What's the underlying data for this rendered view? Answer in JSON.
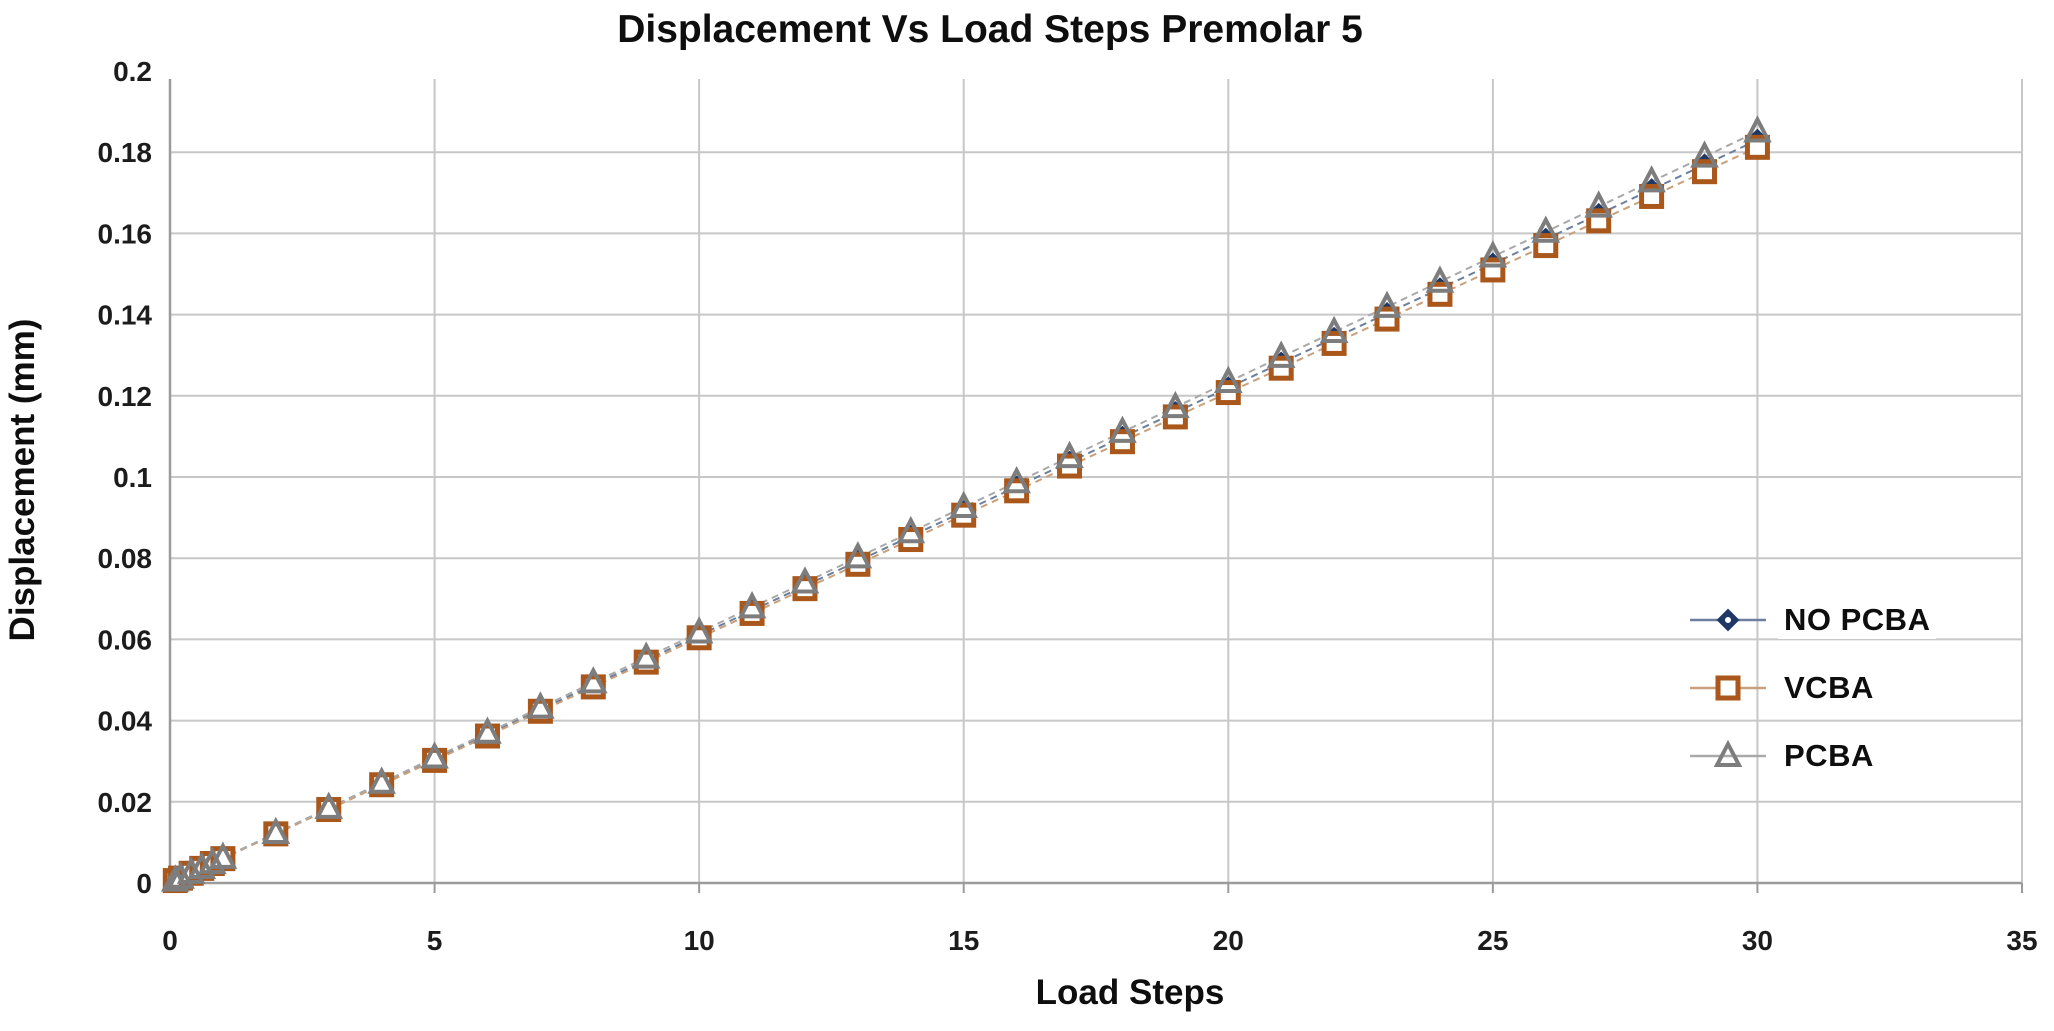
{
  "figure": {
    "background": "#ffffff"
  },
  "colors": {
    "grid": "#c7c7c7",
    "axis": "#9b9b9b",
    "text": "#1c1c1c"
  },
  "chart_data": {
    "type": "line",
    "title": "Displacement Vs Load Steps Premolar 5",
    "xlabel": "Load Steps",
    "ylabel": "Displacement (mm)",
    "xlim": [
      0,
      35
    ],
    "ylim": [
      0,
      0.2
    ],
    "x_ticks": [
      0,
      5,
      10,
      15,
      20,
      25,
      30,
      35
    ],
    "y_ticks": [
      0,
      0.02,
      0.04,
      0.06,
      0.08,
      0.1,
      0.12,
      0.14,
      0.16,
      0.18,
      0.2
    ],
    "grid": true,
    "legend_position": "right-middle",
    "x": [
      0.1,
      0.2,
      0.4,
      0.6,
      0.8,
      1,
      2,
      3,
      4,
      5,
      6,
      7,
      8,
      9,
      10,
      11,
      12,
      13,
      14,
      15,
      16,
      17,
      18,
      19,
      20,
      21,
      22,
      23,
      24,
      25,
      26,
      27,
      28,
      29,
      30
    ],
    "series": [
      {
        "name": "NO PCBA",
        "marker": "diamond",
        "color": "#1f3864",
        "line_color": "#6b7f9e",
        "values": [
          0.0006,
          0.0012,
          0.0024,
          0.0037,
          0.0049,
          0.0061,
          0.0122,
          0.0183,
          0.0244,
          0.0305,
          0.0366,
          0.0427,
          0.0488,
          0.0549,
          0.061,
          0.0671,
          0.0732,
          0.0793,
          0.0854,
          0.0915,
          0.0976,
          0.1037,
          0.1098,
          0.1159,
          0.122,
          0.1281,
          0.1342,
          0.1403,
          0.1464,
          0.1525,
          0.1586,
          0.1647,
          0.1708,
          0.1769,
          0.183
        ]
      },
      {
        "name": "VCBA",
        "marker": "square",
        "color": "#a9571b",
        "line_color": "#c9a07a",
        "values": [
          0.0006,
          0.0012,
          0.0024,
          0.0036,
          0.0048,
          0.006,
          0.0121,
          0.0181,
          0.0242,
          0.0302,
          0.0362,
          0.0423,
          0.0483,
          0.0544,
          0.0604,
          0.0664,
          0.0725,
          0.0785,
          0.0846,
          0.0906,
          0.0966,
          0.1027,
          0.1087,
          0.1148,
          0.1208,
          0.1268,
          0.1329,
          0.1389,
          0.145,
          0.151,
          0.157,
          0.1631,
          0.1691,
          0.1752,
          0.1812
        ]
      },
      {
        "name": "PCBA",
        "marker": "triangle",
        "color": "#7d7d7d",
        "line_color": "#a9a9a9",
        "values": [
          0.0006,
          0.0013,
          0.0025,
          0.0037,
          0.0049,
          0.0062,
          0.0123,
          0.0185,
          0.0247,
          0.0309,
          0.037,
          0.0432,
          0.0494,
          0.0555,
          0.0617,
          0.0679,
          0.074,
          0.0802,
          0.0864,
          0.0926,
          0.0987,
          0.1049,
          0.1111,
          0.1172,
          0.1234,
          0.1296,
          0.1357,
          0.1419,
          0.1481,
          0.1543,
          0.1604,
          0.1666,
          0.1728,
          0.1789,
          0.1851
        ]
      }
    ]
  }
}
